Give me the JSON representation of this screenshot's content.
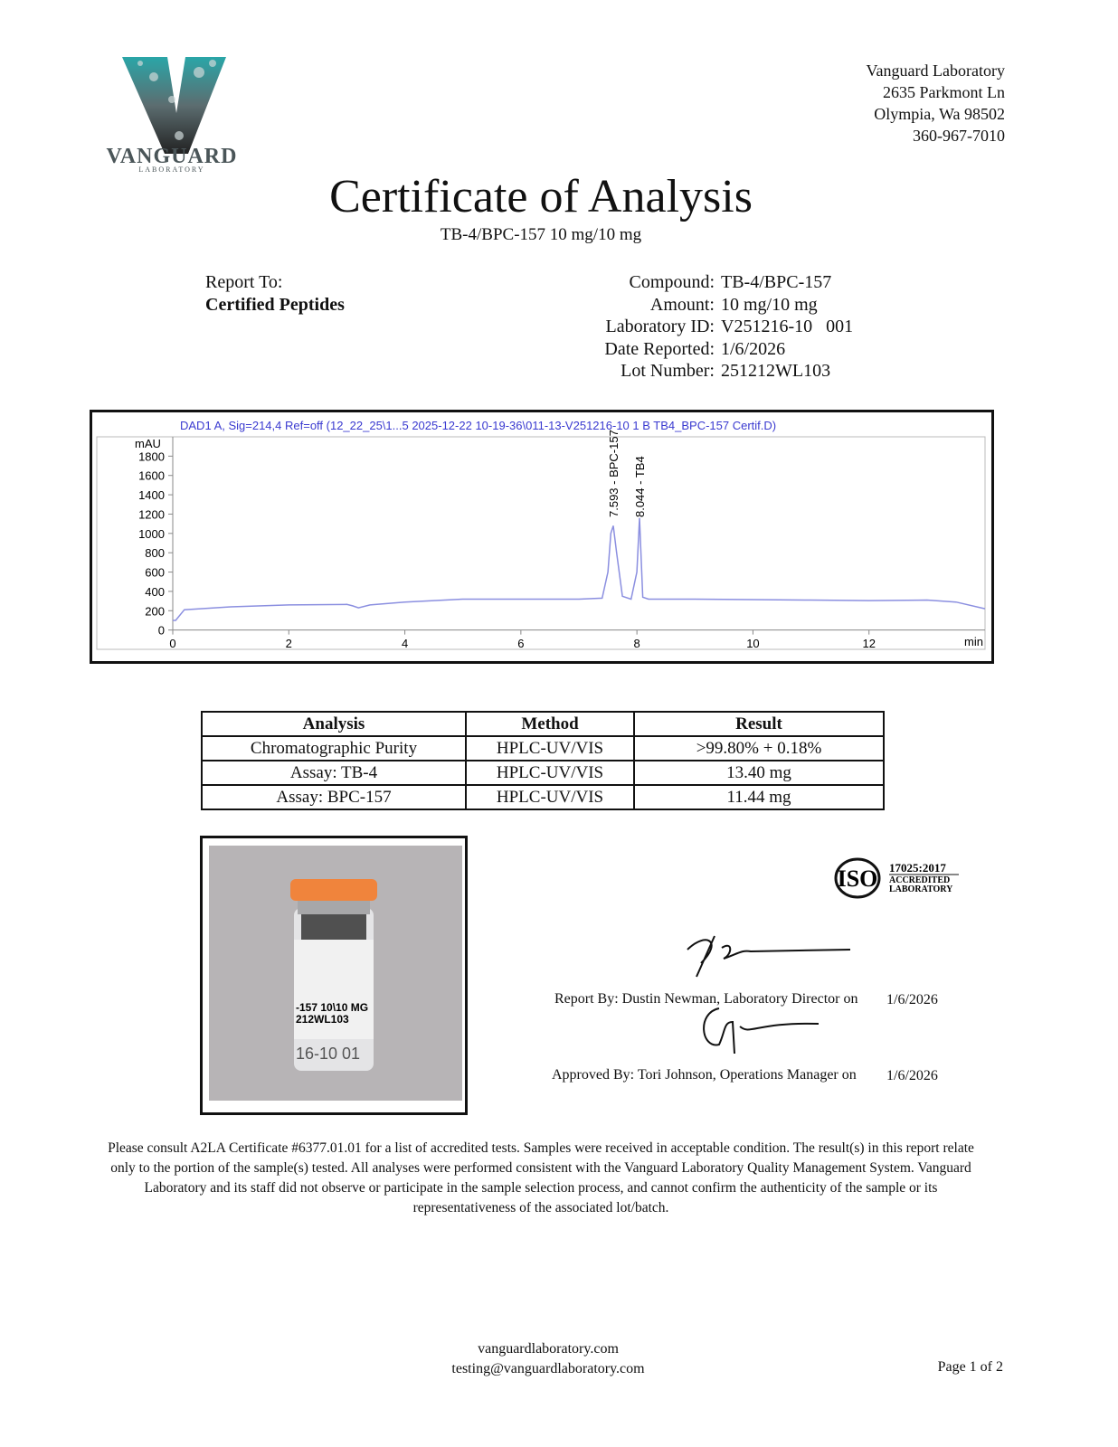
{
  "header": {
    "logo": {
      "name": "VANGUARD",
      "tagline": "LABORATORY"
    },
    "address": [
      "Vanguard Laboratory",
      "2635 Parkmont Ln",
      "Olympia, Wa 98502",
      "360-967-7010"
    ]
  },
  "title": "Certificate of Analysis",
  "subtitle": "TB-4/BPC-157 10 mg/10 mg",
  "report_to": {
    "label": "Report To:",
    "name": "Certified Peptides"
  },
  "details": [
    {
      "label": "Compound:",
      "value": "TB-4/BPC-157"
    },
    {
      "label": "Amount:",
      "value": "10 mg/10 mg"
    },
    {
      "label": "Laboratory ID:",
      "value": "V251216-10   001"
    },
    {
      "label": "Date Reported:",
      "value": "1/6/2026"
    },
    {
      "label": "Lot Number:",
      "value": "251212WL103"
    }
  ],
  "chromatogram": {
    "type": "line",
    "title": "DAD1 A, Sig=214,4 Ref=off (12_22_25\\1...5 2025-12-22 10-19-36\\011-13-V251216-10 1 B TB4_BPC-157 Certif.D)",
    "y_label": "mAU",
    "x_label": "min",
    "color": "#8b8fe0",
    "x": [
      0,
      0.05,
      0.2,
      1,
      2,
      3,
      3.1,
      3.2,
      3.4,
      4,
      5,
      6,
      7,
      7.4,
      7.5,
      7.55,
      7.593,
      7.65,
      7.75,
      7.9,
      8.0,
      8.044,
      8.1,
      8.2,
      9,
      10,
      11,
      12,
      13,
      13.5,
      14
    ],
    "values": [
      100,
      100,
      210,
      240,
      260,
      265,
      250,
      230,
      260,
      290,
      320,
      320,
      320,
      330,
      600,
      1000,
      1080,
      800,
      350,
      320,
      600,
      1160,
      340,
      320,
      320,
      315,
      310,
      305,
      310,
      290,
      220
    ],
    "xlim": [
      0,
      14
    ],
    "ylim": [
      -200,
      2000
    ],
    "xticks": [
      0,
      2,
      4,
      6,
      8,
      10,
      12
    ],
    "yticks": [
      0,
      200,
      400,
      600,
      800,
      1000,
      1200,
      1400,
      1600,
      1800
    ],
    "annotations": [
      {
        "x": 7.593,
        "label": "7.593 - BPC-157"
      },
      {
        "x": 8.044,
        "label": "8.044 - TB4"
      }
    ]
  },
  "table": {
    "headers": [
      "Analysis",
      "Method",
      "Result"
    ],
    "rows": [
      [
        "Chromatographic Purity",
        "HPLC-UV/VIS",
        ">99.80% + 0.18%"
      ],
      [
        "Assay: TB-4",
        "HPLC-UV/VIS",
        "13.40 mg"
      ],
      [
        "Assay: BPC-157",
        "HPLC-UV/VIS",
        "11.44 mg"
      ]
    ]
  },
  "photo": {
    "label_lines": [
      "-157 10\\10 MG",
      "212WL103",
      "16-10 01"
    ]
  },
  "accreditation": {
    "mark": "ISO",
    "standard": "17025:2017",
    "lines": [
      "ACCREDITED",
      "LABORATORY"
    ]
  },
  "signatures": [
    {
      "text": "Report By: Dustin Newman, Laboratory Director on",
      "date": "1/6/2026"
    },
    {
      "text": "Approved By: Tori Johnson, Operations Manager on",
      "date": "1/6/2026"
    }
  ],
  "disclaimer": "Please consult A2LA Certificate #6377.01.01 for a list of accredited tests. Samples were received in acceptable condition. The result(s) in this report relate only to the portion of the sample(s) tested. All analyses were performed consistent with the Vanguard Laboratory Quality Management System. Vanguard Laboratory and its staff did not observe or participate in the sample selection process, and cannot confirm the authenticity of the sample or its representativeness of the associated lot/batch.",
  "footer": {
    "website": "vanguardlaboratory.com",
    "email": "testing@vanguardlaboratory.com",
    "page": "Page 1 of 2"
  }
}
